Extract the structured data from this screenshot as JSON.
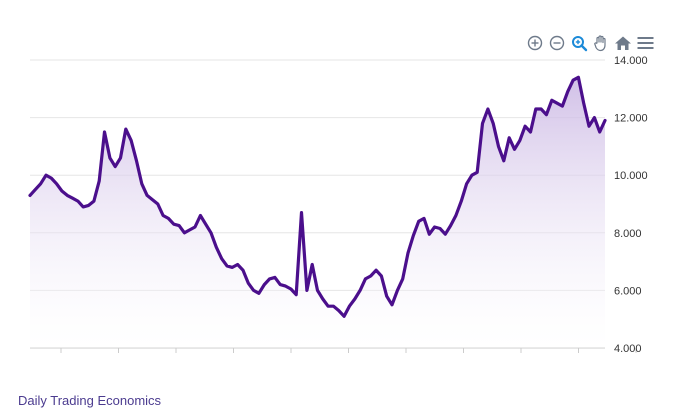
{
  "chart_data": {
    "type": "area",
    "y_ticks": [
      "4.000",
      "6.000",
      "8.000",
      "10.000",
      "12.000",
      "14.000"
    ],
    "ylim": [
      4000,
      14000
    ],
    "xlabel": "",
    "ylabel": "",
    "legend": "none",
    "grid": "horizontal",
    "colors": {
      "line": "#4b0f8c",
      "fill_top": "#c9b5e3",
      "fill_bottom": "#ffffff",
      "grid": "#e6e6e6"
    },
    "x_tick_count": 11,
    "series": [
      {
        "values": [
          9300,
          9500,
          9700,
          10000,
          9900,
          9700,
          9450,
          9300,
          9200,
          9100,
          8900,
          8950,
          9100,
          9800,
          11500,
          10600,
          10300,
          10600,
          11600,
          11200,
          10500,
          9700,
          9300,
          9150,
          9000,
          8600,
          8500,
          8300,
          8250,
          8000,
          8100,
          8200,
          8600,
          8300,
          8000,
          7500,
          7100,
          6850,
          6800,
          6900,
          6700,
          6250,
          6000,
          5900,
          6200,
          6400,
          6450,
          6200,
          6150,
          6050,
          5850,
          8700,
          6000,
          6900,
          6000,
          5700,
          5450,
          5450,
          5300,
          5100,
          5450,
          5700,
          6000,
          6400,
          6500,
          6700,
          6500,
          5800,
          5500,
          6000,
          6400,
          7300,
          7900,
          8400,
          8500,
          7950,
          8200,
          8150,
          7950,
          8250,
          8600,
          9100,
          9700,
          10000,
          10100,
          11800,
          12300,
          11800,
          11000,
          10500,
          11300,
          10900,
          11200,
          11700,
          11500,
          12300,
          12300,
          12100,
          12600,
          12500,
          12400,
          12900,
          13300,
          13400,
          12500,
          11700,
          12000,
          11500,
          11900
        ]
      }
    ]
  },
  "toolbar": {
    "items": [
      "zoom-in-icon",
      "zoom-out-icon",
      "selection-zoom-icon",
      "pan-icon",
      "reset-home-icon",
      "menu-icon"
    ]
  },
  "footer": {
    "link_text": "Daily Trading Economics"
  }
}
